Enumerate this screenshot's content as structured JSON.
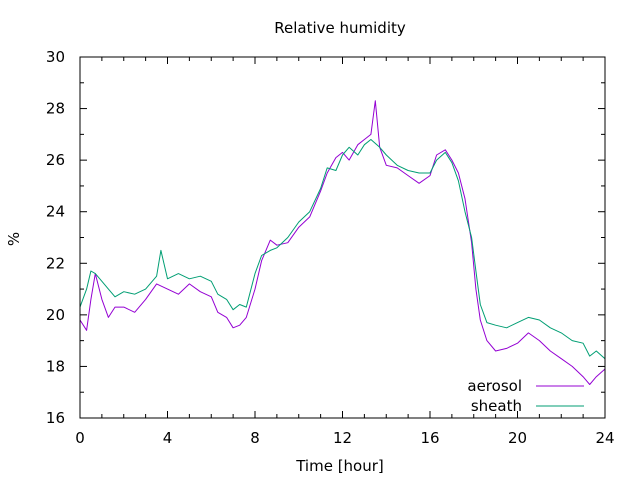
{
  "chart_data": {
    "type": "line",
    "title": "Relative humidity",
    "xlabel": "Time [hour]",
    "ylabel": "%",
    "xlim": [
      0,
      24
    ],
    "ylim": [
      16,
      30
    ],
    "xticks": [
      0,
      4,
      8,
      12,
      16,
      20,
      24
    ],
    "yticks": [
      16,
      18,
      20,
      22,
      24,
      26,
      28,
      30
    ],
    "grid": false,
    "legend_position": "bottom-right",
    "series": [
      {
        "name": "aerosol",
        "color": "#9400d3",
        "x": [
          0,
          0.3,
          0.5,
          0.7,
          1,
          1.3,
          1.6,
          2,
          2.5,
          3,
          3.5,
          4,
          4.5,
          5,
          5.5,
          6,
          6.3,
          6.7,
          7,
          7.3,
          7.6,
          8,
          8.3,
          8.7,
          9,
          9.5,
          10,
          10.5,
          11,
          11.3,
          11.7,
          12,
          12.3,
          12.7,
          13,
          13.3,
          13.5,
          13.7,
          14,
          14.5,
          15,
          15.5,
          16,
          16.3,
          16.7,
          17,
          17.3,
          17.6,
          17.9,
          18.1,
          18.3,
          18.6,
          19,
          19.5,
          20,
          20.5,
          21,
          21.5,
          22,
          22.5,
          23,
          23.3,
          23.6,
          24
        ],
        "y": [
          19.8,
          19.4,
          20.6,
          21.6,
          20.6,
          19.9,
          20.3,
          20.3,
          20.1,
          20.6,
          21.2,
          21.0,
          20.8,
          21.2,
          20.9,
          20.7,
          20.1,
          19.9,
          19.5,
          19.6,
          19.9,
          21.0,
          22.1,
          22.9,
          22.7,
          22.8,
          23.4,
          23.8,
          24.8,
          25.5,
          26.1,
          26.3,
          26.0,
          26.6,
          26.8,
          27.0,
          28.3,
          26.5,
          25.8,
          25.7,
          25.4,
          25.1,
          25.4,
          26.2,
          26.4,
          26.0,
          25.5,
          24.5,
          22.8,
          21.0,
          19.8,
          19.0,
          18.6,
          18.7,
          18.9,
          19.3,
          19.0,
          18.6,
          18.3,
          18.0,
          17.6,
          17.3,
          17.6,
          17.9
        ]
      },
      {
        "name": "sheath",
        "color": "#009e73",
        "x": [
          0,
          0.3,
          0.5,
          0.7,
          1,
          1.3,
          1.6,
          2,
          2.5,
          3,
          3.5,
          3.7,
          4,
          4.5,
          5,
          5.5,
          6,
          6.3,
          6.7,
          7,
          7.3,
          7.6,
          8,
          8.3,
          8.7,
          9,
          9.5,
          10,
          10.5,
          11,
          11.3,
          11.7,
          12,
          12.3,
          12.7,
          13,
          13.3,
          13.7,
          14,
          14.5,
          15,
          15.5,
          16,
          16.3,
          16.7,
          17,
          17.3,
          17.6,
          17.9,
          18.1,
          18.3,
          18.6,
          19,
          19.5,
          20,
          20.5,
          21,
          21.5,
          22,
          22.5,
          23,
          23.3,
          23.6,
          24
        ],
        "y": [
          20.3,
          21.0,
          21.7,
          21.6,
          21.3,
          21.0,
          20.7,
          20.9,
          20.8,
          21.0,
          21.5,
          22.5,
          21.4,
          21.6,
          21.4,
          21.5,
          21.3,
          20.8,
          20.6,
          20.2,
          20.4,
          20.3,
          21.6,
          22.3,
          22.5,
          22.6,
          23.0,
          23.6,
          24.0,
          24.9,
          25.7,
          25.6,
          26.2,
          26.5,
          26.2,
          26.6,
          26.8,
          26.5,
          26.2,
          25.8,
          25.6,
          25.5,
          25.5,
          26.0,
          26.3,
          25.9,
          25.2,
          24.0,
          23.0,
          21.7,
          20.4,
          19.7,
          19.6,
          19.5,
          19.7,
          19.9,
          19.8,
          19.5,
          19.3,
          19.0,
          18.9,
          18.4,
          18.6,
          18.3
        ]
      }
    ]
  }
}
